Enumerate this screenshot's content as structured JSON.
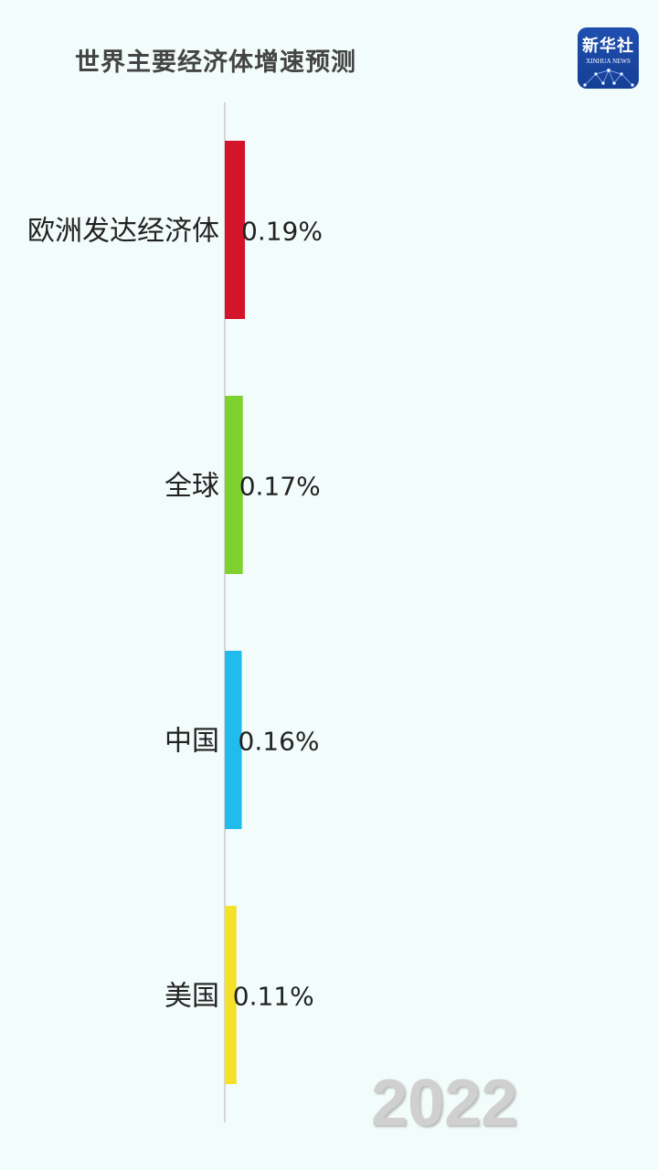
{
  "title": "世界主要经济体增速预测",
  "logo": {
    "cn": "新华社",
    "en": "XINHUA NEWS"
  },
  "chart_data": {
    "type": "bar",
    "orientation": "horizontal",
    "title": "世界主要经济体增速预测",
    "categories": [
      "欧洲发达经济体",
      "全球",
      "中国",
      "美国"
    ],
    "values": [
      0.19,
      0.17,
      0.16,
      0.11
    ],
    "value_labels": [
      "0.19%",
      "0.17%",
      "0.16%",
      "0.11%"
    ],
    "colors": [
      "#d3142b",
      "#7fd130",
      "#22bbee",
      "#f5e02a"
    ],
    "unit": "%",
    "year": "2022",
    "grid": false
  }
}
